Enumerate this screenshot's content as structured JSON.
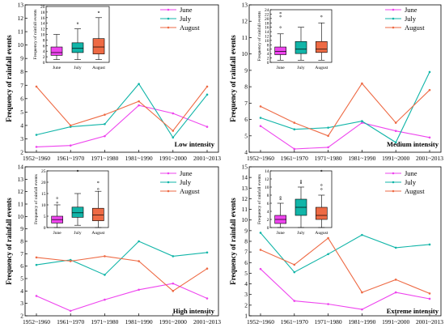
{
  "colors": {
    "June": "#ee44ee",
    "July": "#11b5a8",
    "August": "#ee6a44"
  },
  "chart_data": [
    {
      "type": "line",
      "annotation": "Low intensity",
      "ylabel": "Frequency of rainfall events",
      "categories": [
        "1952~1960",
        "1961~1970",
        "1971~1980",
        "1981~1990",
        "1991~2000",
        "2001~2013"
      ],
      "ylim": [
        2,
        13
      ],
      "yticks": [
        2,
        3,
        4,
        5,
        6,
        7,
        8,
        9,
        10,
        11,
        12,
        13
      ],
      "series": [
        {
          "name": "June",
          "values": [
            2.4,
            2.5,
            3.2,
            5.5,
            4.9,
            3.9
          ]
        },
        {
          "name": "July",
          "values": [
            3.3,
            3.9,
            4.1,
            7.1,
            3.1,
            6.3
          ]
        },
        {
          "name": "August",
          "values": [
            6.9,
            4.0,
            4.8,
            5.8,
            3.6,
            6.9
          ]
        }
      ],
      "inset": {
        "type": "box",
        "ylabel": "Frequency of rainfall events",
        "ylim": [
          0,
          20
        ],
        "yticks": [
          0,
          2,
          4,
          6,
          8,
          10,
          12,
          14,
          16,
          18,
          20
        ],
        "categories": [
          "June",
          "July",
          "August"
        ],
        "boxes": [
          {
            "name": "June",
            "min": 1,
            "q1": 2.5,
            "median": 3.5,
            "q3": 5.5,
            "max": 10,
            "outliers": []
          },
          {
            "name": "July",
            "min": 1,
            "q1": 3.5,
            "median": 5,
            "q3": 7,
            "max": 12,
            "outliers": [
              14
            ]
          },
          {
            "name": "August",
            "min": 1,
            "q1": 3,
            "median": 5.5,
            "q3": 8.5,
            "max": 16,
            "outliers": [
              18
            ]
          }
        ]
      }
    },
    {
      "type": "line",
      "annotation": "Medium intensity",
      "ylabel": "Frequency of rainfall events",
      "categories": [
        "1952~1960",
        "1961~1970",
        "1971~1980",
        "1981~1990",
        "1991~2000",
        "2001~2013"
      ],
      "ylim": [
        4,
        13
      ],
      "yticks": [
        4,
        5,
        6,
        7,
        8,
        9,
        10,
        11,
        12,
        13
      ],
      "series": [
        {
          "name": "June",
          "values": [
            5.6,
            4.2,
            4.3,
            5.8,
            5.3,
            4.9
          ]
        },
        {
          "name": "July",
          "values": [
            6.1,
            5.4,
            5.5,
            5.9,
            4.6,
            8.9
          ]
        },
        {
          "name": "August",
          "values": [
            6.8,
            5.8,
            5.0,
            8.2,
            5.8,
            7.8
          ]
        }
      ],
      "inset": {
        "type": "box",
        "ylabel": "Frequency of rainfall events",
        "ylim": [
          0,
          24
        ],
        "yticks": [
          0,
          2,
          4,
          6,
          8,
          10,
          12,
          14,
          16,
          18,
          20,
          22,
          24
        ],
        "categories": [
          "June",
          "July",
          "August"
        ],
        "boxes": [
          {
            "name": "June",
            "min": 1,
            "q1": 3.5,
            "median": 5,
            "q3": 7,
            "max": 13,
            "outliers": [
              16,
              21,
              22.5
            ]
          },
          {
            "name": "July",
            "min": 1,
            "q1": 4,
            "median": 6,
            "q3": 9.5,
            "max": 16,
            "outliers": []
          },
          {
            "name": "August",
            "min": 1,
            "q1": 4.5,
            "median": 6,
            "q3": 9.5,
            "max": 18,
            "outliers": [
              21
            ]
          }
        ]
      }
    },
    {
      "type": "line",
      "annotation": "High intensity",
      "ylabel": "Frequency of rainfall events",
      "categories": [
        "1952~1960",
        "1961~1970",
        "1971~1980",
        "1981~1990",
        "1991~2000",
        "2001~2013"
      ],
      "ylim": [
        2,
        14
      ],
      "yticks": [
        2,
        3,
        4,
        5,
        6,
        7,
        8,
        9,
        10,
        11,
        12,
        13,
        14
      ],
      "series": [
        {
          "name": "June",
          "values": [
            3.6,
            2.4,
            3.3,
            4.1,
            4.6,
            3.4
          ]
        },
        {
          "name": "July",
          "values": [
            6.1,
            6.5,
            5.3,
            8.0,
            6.8,
            7.1
          ]
        },
        {
          "name": "August",
          "values": [
            6.7,
            6.4,
            6.8,
            6.4,
            4.0,
            5.8
          ]
        }
      ],
      "inset": {
        "type": "box",
        "ylabel": "Frequency of rainfall events",
        "ylim": [
          0,
          25
        ],
        "yticks": [
          0,
          5,
          10,
          15,
          20,
          25
        ],
        "categories": [
          "June",
          "July",
          "August"
        ],
        "boxes": [
          {
            "name": "June",
            "min": 0,
            "q1": 2,
            "median": 3.5,
            "q3": 5,
            "max": 10,
            "outliers": [
              11,
              13
            ]
          },
          {
            "name": "July",
            "min": 1,
            "q1": 4.5,
            "median": 6.5,
            "q3": 9,
            "max": 15,
            "outliers": [
              25
            ]
          },
          {
            "name": "August",
            "min": 0,
            "q1": 3,
            "median": 5.5,
            "q3": 8.5,
            "max": 16,
            "outliers": [
              17,
              20
            ]
          }
        ]
      }
    },
    {
      "type": "line",
      "annotation": "Extreme intensity",
      "ylabel": "Frequency of rainfall events",
      "categories": [
        "1952~1960",
        "1961~1970",
        "1971~1980",
        "1981~1990",
        "1991~2000",
        "2001~2013"
      ],
      "ylim": [
        1,
        15
      ],
      "yticks": [
        1,
        2,
        3,
        4,
        5,
        6,
        7,
        8,
        9,
        10,
        11,
        12,
        13,
        14,
        15
      ],
      "series": [
        {
          "name": "June",
          "values": [
            5.4,
            2.4,
            2.1,
            1.6,
            3.2,
            2.6
          ]
        },
        {
          "name": "July",
          "values": [
            8.8,
            5.1,
            6.8,
            8.6,
            7.4,
            7.7
          ]
        },
        {
          "name": "August",
          "values": [
            7.2,
            5.8,
            8.3,
            3.2,
            4.4,
            3.1
          ]
        }
      ],
      "inset": {
        "type": "box",
        "ylabel": "Frequency of rainfall events",
        "ylim": [
          0,
          14
        ],
        "yticks": [
          0,
          2,
          4,
          6,
          8,
          10,
          12,
          14
        ],
        "categories": [
          "June",
          "July",
          "August"
        ],
        "boxes": [
          {
            "name": "June",
            "min": 0,
            "q1": 1,
            "median": 2,
            "q3": 3,
            "max": 6,
            "outliers": [
              7,
              7.5
            ]
          },
          {
            "name": "July",
            "min": 0,
            "q1": 3,
            "median": 5,
            "q3": 7,
            "max": 10,
            "outliers": [
              11,
              11.5
            ]
          },
          {
            "name": "August",
            "min": 0,
            "q1": 2,
            "median": 3,
            "q3": 5,
            "max": 8,
            "outliers": [
              9.5,
              10.5,
              14
            ]
          }
        ]
      }
    }
  ]
}
